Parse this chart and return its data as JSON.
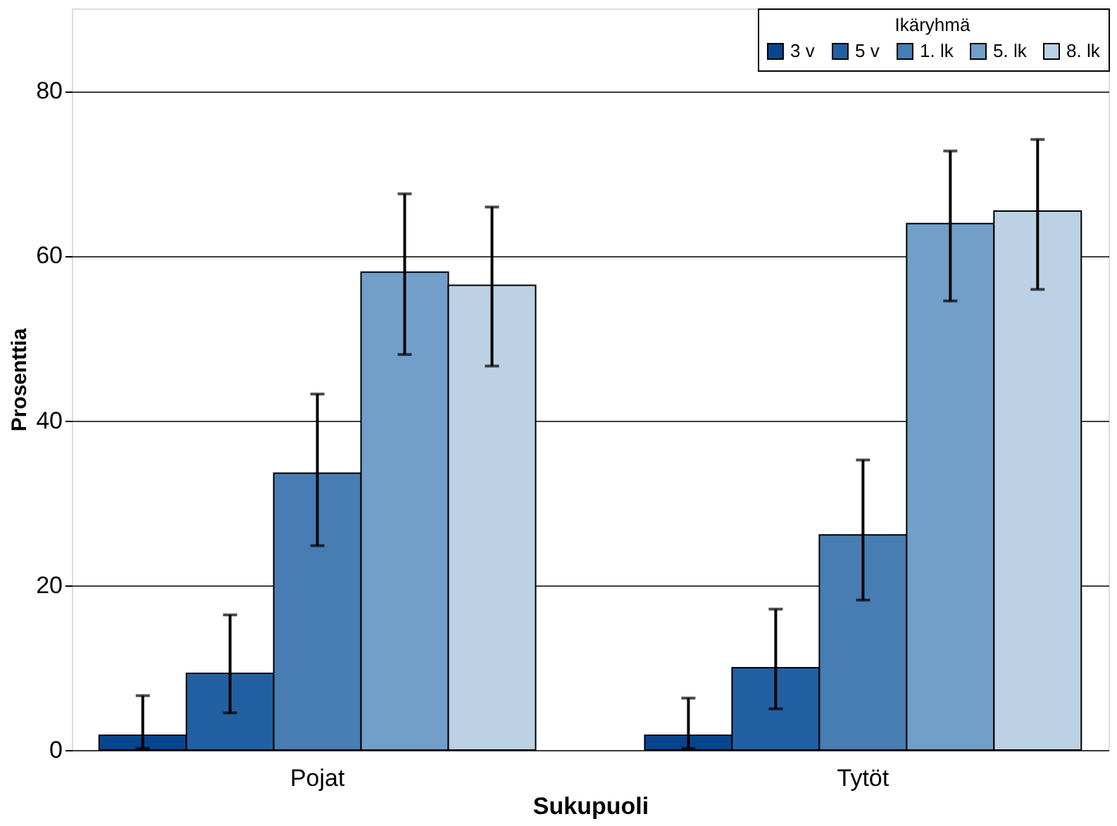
{
  "chart_data": {
    "type": "bar",
    "xlabel": "Sukupuoli",
    "ylabel": "Prosenttia",
    "legend_title": "Ikäryhmä",
    "categories": [
      "Pojat",
      "Tytöt"
    ],
    "series": [
      {
        "name": "3 v",
        "color": "#08458f",
        "values": [
          1.8,
          1.8
        ],
        "errors": [
          [
            0.2,
            6.6
          ],
          [
            0.2,
            6.3
          ]
        ]
      },
      {
        "name": "5 v",
        "color": "#2260a4",
        "values": [
          9.3,
          10.0
        ],
        "errors": [
          [
            4.5,
            16.4
          ],
          [
            5.0,
            17.1
          ]
        ]
      },
      {
        "name": "1. lk",
        "color": "#487db3",
        "values": [
          33.6,
          26.1
        ],
        "errors": [
          [
            24.8,
            43.2
          ],
          [
            18.2,
            35.2
          ]
        ]
      },
      {
        "name": "5. lk",
        "color": "#729fc9",
        "values": [
          58.0,
          63.9
        ],
        "errors": [
          [
            48.0,
            67.5
          ],
          [
            54.5,
            72.7
          ]
        ]
      },
      {
        "name": "8. lk",
        "color": "#bdd1e4",
        "values": [
          56.4,
          65.4
        ],
        "errors": [
          [
            46.6,
            65.9
          ],
          [
            55.9,
            74.1
          ]
        ]
      }
    ],
    "ylim": [
      0,
      90
    ],
    "yticks": [
      0,
      20,
      40,
      60,
      80
    ],
    "grid": "y",
    "legend": "top right"
  }
}
